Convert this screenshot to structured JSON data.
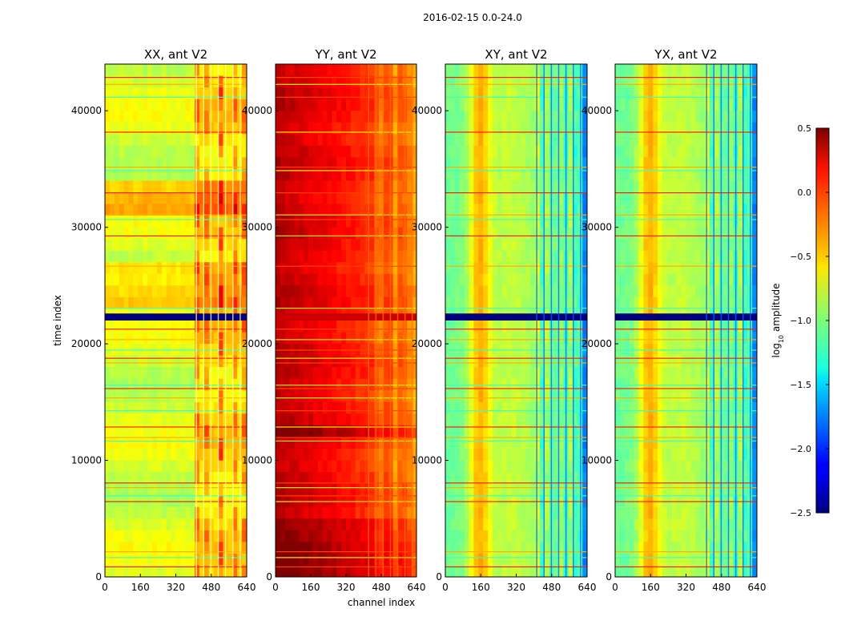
{
  "chart_data": {
    "type": "heatmap",
    "title": "2016-02-15 0.0-24.0",
    "xlabel": "channel index",
    "ylabel": "time index",
    "xlim": [
      0,
      640
    ],
    "ylim": [
      0,
      44000
    ],
    "xticks": [
      "0",
      "160",
      "320",
      "480",
      "640"
    ],
    "xtick_values": [
      0,
      160,
      320,
      480,
      640
    ],
    "yticks": [
      "0",
      "10000",
      "20000",
      "30000",
      "40000"
    ],
    "ytick_values": [
      0,
      10000,
      20000,
      30000,
      40000
    ],
    "panels": [
      {
        "title": "XX, ant V2",
        "base_level": -0.75,
        "flagged_time_band": [
          22000,
          22600
        ],
        "rfi_channels": [
          410,
          640
        ]
      },
      {
        "title": "YY, ant V2",
        "base_level": 0.35,
        "flagged_time_band": [
          22000,
          22600
        ],
        "rfi_channels": [
          420,
          640
        ]
      },
      {
        "title": "XY, ant V2",
        "base_level": -1.05,
        "flagged_time_band": [
          22000,
          22600
        ],
        "rfi_channels": [
          410,
          640
        ]
      },
      {
        "title": "YX, ant V2",
        "base_level": -1.05,
        "flagged_time_band": [
          22000,
          22600
        ],
        "rfi_channels": [
          410,
          640
        ]
      }
    ],
    "colorbar": {
      "label": "log10 amplitude",
      "label_main": "log",
      "label_sub": "10",
      "label_rest": " amplitude",
      "range": [
        -2.5,
        0.5
      ],
      "ticks": [
        "0.5",
        "0.0",
        "−0.5",
        "−1.0",
        "−1.5",
        "−2.0",
        "−2.5"
      ],
      "tick_values": [
        0.5,
        0.0,
        -0.5,
        -1.0,
        -1.5,
        -2.0,
        -2.5
      ],
      "colormap": "jet"
    }
  }
}
